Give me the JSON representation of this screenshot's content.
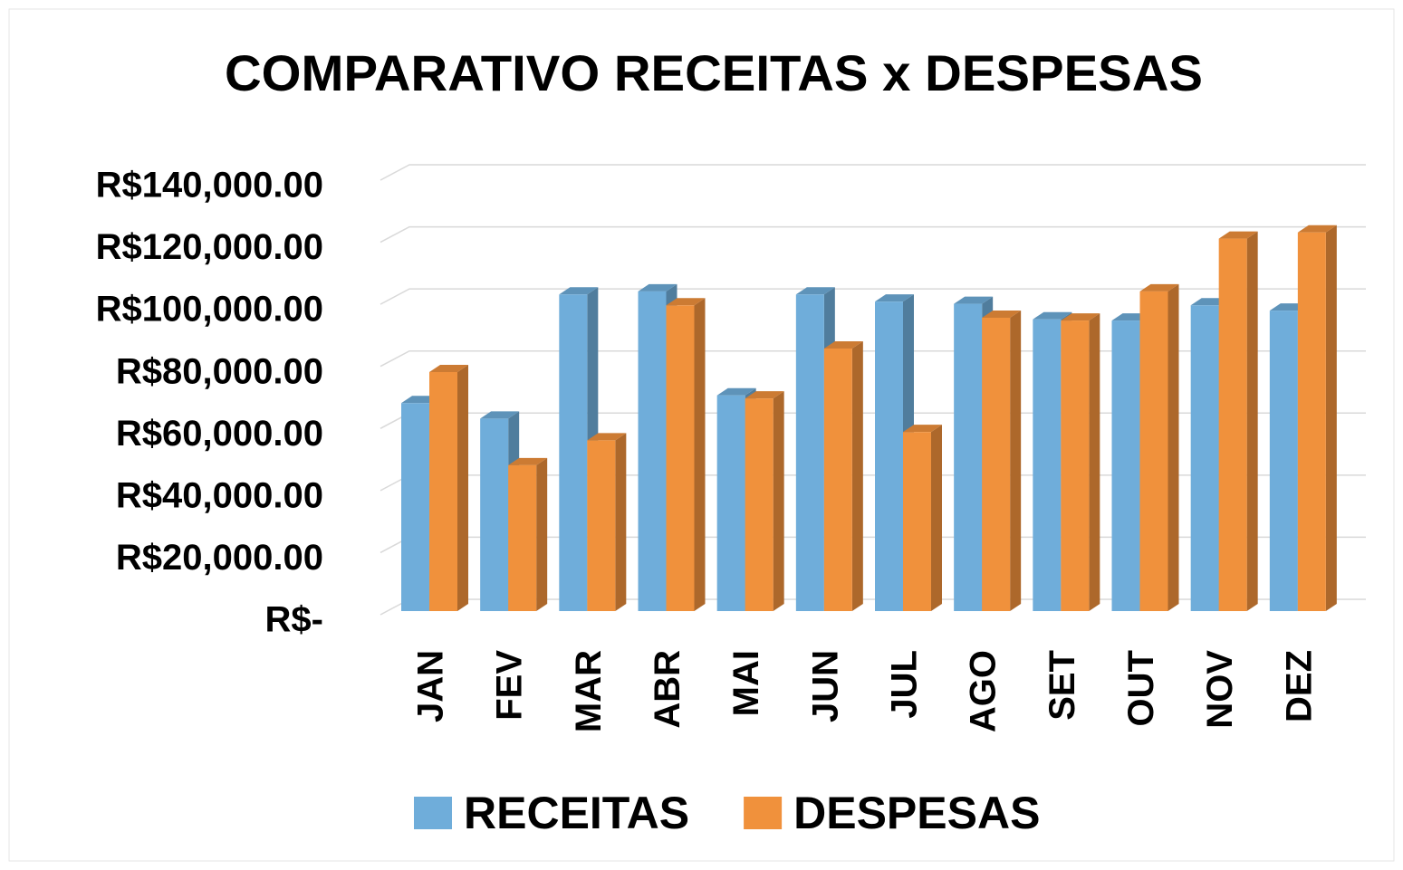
{
  "chart_data": {
    "type": "bar3d",
    "title": "COMPARATIVO RECEITAS x DESPESAS",
    "categories": [
      "JAN",
      "FEV",
      "MAR",
      "ABR",
      "MAI",
      "JUN",
      "JUL",
      "AGO",
      "SET",
      "OUT",
      "NOV",
      "DEZ"
    ],
    "series": [
      {
        "name": "RECEITAS",
        "color": "#6fadda",
        "values": [
          67000,
          62000,
          102000,
          103000,
          69500,
          102000,
          99700,
          99000,
          94000,
          93600,
          98500,
          96800
        ]
      },
      {
        "name": "DESPESAS",
        "color": "#f0913c",
        "values": [
          77000,
          47000,
          55000,
          98500,
          68500,
          84600,
          57700,
          94500,
          93600,
          103000,
          120000,
          122000
        ]
      }
    ],
    "ylim": [
      0,
      140000
    ],
    "yticks": [
      {
        "value": 0,
        "label": "R$-"
      },
      {
        "value": 20000,
        "label": "R$20,000.00"
      },
      {
        "value": 40000,
        "label": "R$40,000.00"
      },
      {
        "value": 60000,
        "label": "R$60,000.00"
      },
      {
        "value": 80000,
        "label": "R$80,000.00"
      },
      {
        "value": 100000,
        "label": "R$100,000.00"
      },
      {
        "value": 120000,
        "label": "R$120,000.00"
      },
      {
        "value": 140000,
        "label": "R$140,000.00"
      }
    ],
    "grid": true,
    "legend": "bottom"
  }
}
